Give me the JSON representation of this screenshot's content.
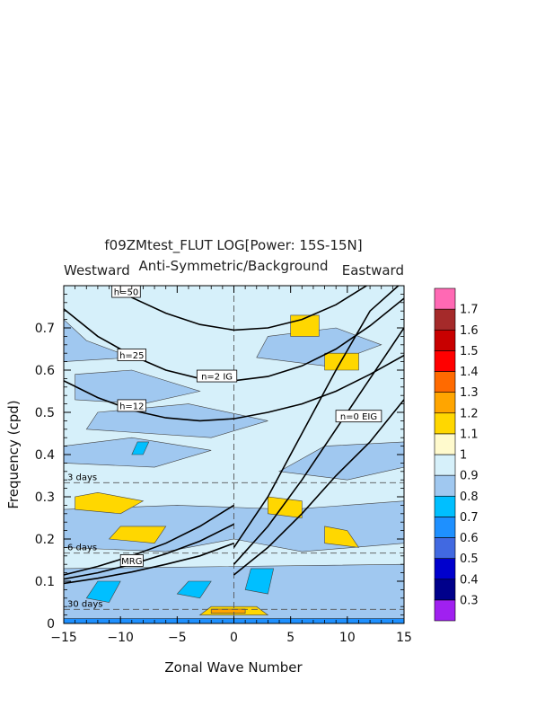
{
  "chart_data": {
    "type": "heatmap",
    "title": "f09ZMtest_FLUT LOG[Power: 15S-15N]",
    "subtitle": "Anti-Symmetric/Background",
    "direction_left": "Westward",
    "direction_right": "Eastward",
    "xlabel": "Zonal Wave Number",
    "ylabel": "Frequency (cpd)",
    "xlim": [
      -15,
      15
    ],
    "ylim": [
      0,
      0.8
    ],
    "x_ticks": [
      -15,
      -10,
      -5,
      0,
      5,
      10,
      15
    ],
    "x_tick_labels": [
      "−15",
      "−10",
      "−5",
      "0",
      "5",
      "10",
      "15"
    ],
    "y_ticks": [
      0,
      0.1,
      0.2,
      0.3,
      0.4,
      0.5,
      0.6,
      0.7
    ],
    "y_tick_labels": [
      "0",
      "0.1",
      "0.2",
      "0.3",
      "0.4",
      "0.5",
      "0.6",
      "0.7"
    ],
    "colorbar": {
      "levels": [
        0.3,
        0.4,
        0.5,
        0.6,
        0.7,
        0.8,
        0.9,
        1,
        1.1,
        1.2,
        1.3,
        1.4,
        1.5,
        1.6,
        1.7
      ],
      "labels": [
        "0.3",
        "0.4",
        "0.5",
        "0.6",
        "0.7",
        "0.8",
        "0.9",
        "1",
        "1.1",
        "1.2",
        "1.3",
        "1.4",
        "1.5",
        "1.6",
        "1.7"
      ],
      "colors": [
        "#a020f0",
        "#00008b",
        "#0000cd",
        "#4169e1",
        "#1e90ff",
        "#00bfff",
        "#a0c8f0",
        "#d6f0fa",
        "#fffacd",
        "#ffd700",
        "#ffa500",
        "#ff6a00",
        "#ff0000",
        "#c80000",
        "#a52a2a",
        "#ff69b4"
      ]
    },
    "period_lines": [
      {
        "label": "3 days",
        "frequency": 0.3333
      },
      {
        "label": "6 days",
        "frequency": 0.1667
      },
      {
        "label": "30 days",
        "frequency": 0.0333
      }
    ],
    "dispersion_labels": [
      {
        "label": "h=50",
        "k": -9.5,
        "f": 0.785
      },
      {
        "label": "h=25",
        "k": -9.0,
        "f": 0.635
      },
      {
        "label": "h=12",
        "k": -9.0,
        "f": 0.515
      },
      {
        "label": "n=2 IG",
        "k": -1.5,
        "f": 0.585
      },
      {
        "label": "n=0 EIG",
        "k": 11.0,
        "f": 0.49
      },
      {
        "label": "MRG",
        "k": -9.0,
        "f": 0.148
      }
    ],
    "dispersion_curves": [
      {
        "name": "n=2 IG h=50",
        "k": [
          -15,
          -12,
          -9,
          -6,
          -3,
          0,
          3,
          6,
          9,
          12,
          15
        ],
        "f": [
          0.88,
          0.82,
          0.772,
          0.735,
          0.708,
          0.695,
          0.7,
          0.72,
          0.755,
          0.805,
          0.86
        ]
      },
      {
        "name": "n=2 IG h=25",
        "k": [
          -15,
          -12,
          -9,
          -6,
          -3,
          0,
          3,
          6,
          9,
          12,
          15
        ],
        "f": [
          0.745,
          0.68,
          0.635,
          0.6,
          0.58,
          0.575,
          0.585,
          0.61,
          0.65,
          0.705,
          0.77
        ]
      },
      {
        "name": "n=2 IG h=12",
        "k": [
          -15,
          -12,
          -9,
          -6,
          -3,
          0,
          3,
          6,
          9,
          12,
          15
        ],
        "f": [
          0.575,
          0.535,
          0.505,
          0.487,
          0.48,
          0.485,
          0.5,
          0.52,
          0.55,
          0.59,
          0.635
        ]
      },
      {
        "name": "n=0 EIG h=50",
        "k": [
          0,
          3,
          6,
          9,
          12,
          14.5
        ],
        "f": [
          0.18,
          0.3,
          0.45,
          0.6,
          0.74,
          0.8
        ]
      },
      {
        "name": "n=0 EIG h=25",
        "k": [
          0,
          3,
          6,
          9,
          12,
          15
        ],
        "f": [
          0.14,
          0.23,
          0.34,
          0.46,
          0.58,
          0.7
        ]
      },
      {
        "name": "n=0 EIG h=12",
        "k": [
          0,
          3,
          6,
          9,
          12,
          15
        ],
        "f": [
          0.115,
          0.18,
          0.26,
          0.35,
          0.43,
          0.53
        ]
      },
      {
        "name": "MRG h=50",
        "k": [
          -15,
          -12,
          -9,
          -6,
          -3,
          0
        ],
        "f": [
          0.115,
          0.135,
          0.16,
          0.19,
          0.23,
          0.28
        ]
      },
      {
        "name": "MRG h=25",
        "k": [
          -15,
          -12,
          -9,
          -6,
          -3,
          0
        ],
        "f": [
          0.105,
          0.12,
          0.14,
          0.165,
          0.195,
          0.235
        ]
      },
      {
        "name": "MRG h=12",
        "k": [
          -15,
          -12,
          -9,
          -6,
          -3,
          0
        ],
        "f": [
          0.095,
          0.107,
          0.122,
          0.14,
          0.16,
          0.19
        ]
      }
    ],
    "regions": [
      {
        "level": "0.8",
        "k": [
          -15,
          -9,
          -13,
          -15
        ],
        "f": [
          0.62,
          0.63,
          0.67,
          0.72
        ]
      },
      {
        "level": "0.8",
        "k": [
          -14,
          -8,
          -3,
          -9,
          -14
        ],
        "f": [
          0.53,
          0.52,
          0.55,
          0.6,
          0.59
        ]
      },
      {
        "level": "0.8",
        "k": [
          -13,
          -2,
          3,
          -4,
          -12
        ],
        "f": [
          0.46,
          0.44,
          0.48,
          0.52,
          0.5
        ]
      },
      {
        "level": "0.8",
        "k": [
          -15,
          -7,
          -2,
          -9,
          -15
        ],
        "f": [
          0.38,
          0.37,
          0.41,
          0.44,
          0.42
        ]
      },
      {
        "level": "0.8",
        "k": [
          2,
          8,
          13,
          9,
          3
        ],
        "f": [
          0.63,
          0.61,
          0.66,
          0.7,
          0.68
        ]
      },
      {
        "level": "0.8",
        "k": [
          4,
          10,
          15,
          15,
          8
        ],
        "f": [
          0.36,
          0.34,
          0.37,
          0.43,
          0.42
        ]
      },
      {
        "level": "0.8",
        "k": [
          -15,
          -6,
          0,
          6,
          15,
          15,
          5,
          -5,
          -15
        ],
        "f": [
          0.18,
          0.17,
          0.2,
          0.17,
          0.19,
          0.29,
          0.27,
          0.28,
          0.27
        ]
      },
      {
        "level": "0.8",
        "k": [
          -15,
          15,
          15,
          -15
        ],
        "f": [
          0.0,
          0.0,
          0.14,
          0.13
        ]
      },
      {
        "level": "0.7",
        "k": [
          -13,
          -11,
          -10,
          -12
        ],
        "f": [
          0.06,
          0.05,
          0.1,
          0.1
        ]
      },
      {
        "level": "0.7",
        "k": [
          -5,
          -3,
          -2,
          -4
        ],
        "f": [
          0.07,
          0.06,
          0.1,
          0.1
        ]
      },
      {
        "level": "0.7",
        "k": [
          1,
          3,
          3.5,
          1.5
        ],
        "f": [
          0.08,
          0.07,
          0.13,
          0.13
        ]
      },
      {
        "level": "0.7",
        "k": [
          -9,
          -8,
          -7.5,
          -8.5
        ],
        "f": [
          0.4,
          0.4,
          0.43,
          0.43
        ]
      },
      {
        "level": "0.6",
        "k": [
          -15,
          15,
          15,
          -15
        ],
        "f": [
          0.0,
          0.0,
          0.012,
          0.012
        ]
      },
      {
        "level": "1.1",
        "k": [
          -14,
          -10,
          -8,
          -12,
          -14
        ],
        "f": [
          0.27,
          0.26,
          0.29,
          0.31,
          0.3
        ]
      },
      {
        "level": "1.1",
        "k": [
          -11,
          -7,
          -6,
          -10
        ],
        "f": [
          0.2,
          0.19,
          0.23,
          0.23
        ]
      },
      {
        "level": "1.1",
        "k": [
          -3,
          3,
          2,
          -2
        ],
        "f": [
          0.02,
          0.02,
          0.04,
          0.04
        ]
      },
      {
        "level": "1.1",
        "k": [
          8,
          11,
          11,
          8
        ],
        "f": [
          0.6,
          0.6,
          0.64,
          0.64
        ]
      },
      {
        "level": "1.1",
        "k": [
          5,
          7.5,
          7.5,
          5
        ],
        "f": [
          0.68,
          0.68,
          0.73,
          0.73
        ]
      },
      {
        "level": "1.1",
        "k": [
          8,
          11,
          10,
          8
        ],
        "f": [
          0.19,
          0.18,
          0.22,
          0.23
        ]
      },
      {
        "level": "1.1",
        "k": [
          3,
          6,
          6,
          3
        ],
        "f": [
          0.26,
          0.25,
          0.29,
          0.3
        ]
      },
      {
        "level": "1.2",
        "k": [
          -2,
          1,
          1,
          -2
        ],
        "f": [
          0.024,
          0.024,
          0.034,
          0.034
        ]
      }
    ]
  }
}
